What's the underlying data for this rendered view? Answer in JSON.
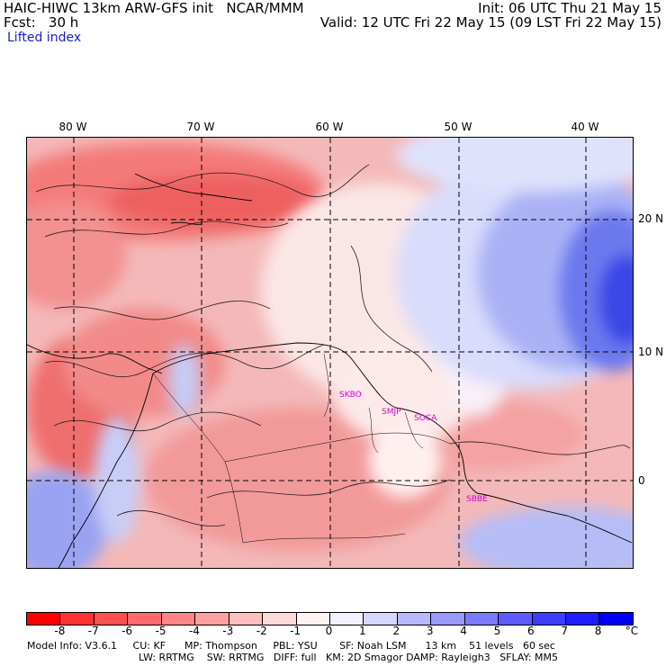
{
  "header": {
    "left_line1": "HAIC-HIWC 13km ARW-GFS init   NCAR/MMM",
    "left_line2": "Fcst:   30 h",
    "right_line1": "Init: 06 UTC Thu 21 May 15",
    "right_line2": "Valid: 12 UTC Fri 22 May 15 (09 LST Fri 22 May 15)",
    "field_name": "Lifted index"
  },
  "map": {
    "lon_labels": [
      "80 W",
      "70 W",
      "60 W",
      "50 W",
      "40 W"
    ],
    "lat_labels": [
      "20 N",
      "10 N",
      "0"
    ],
    "stations": [
      "SKBO",
      "SMJP",
      "SOCA",
      "SBBE"
    ],
    "colors": {
      "negative_strong": "#ff2020",
      "neutral": "#ffffff",
      "positive_strong": "#2020ff"
    }
  },
  "colorbar": {
    "labels": [
      "-8",
      "-7",
      "-6",
      "-5",
      "-4",
      "-3",
      "-2",
      "-1",
      "0",
      "1",
      "2",
      "3",
      "4",
      "5",
      "6",
      "7",
      "8"
    ],
    "unit": "°C",
    "colors": [
      "#ff0000",
      "#ff3333",
      "#ff5050",
      "#ff6b6b",
      "#ff8585",
      "#ffa0a0",
      "#ffbdbd",
      "#ffd9d9",
      "#fff2f2",
      "#f2f2ff",
      "#d6d6ff",
      "#b8b8ff",
      "#9999ff",
      "#7a7aff",
      "#5b5bff",
      "#3d3dff",
      "#1e1eff",
      "#0000ff"
    ]
  },
  "footer": {
    "line1": "Model Info: V3.6.1     CU: KF      MP: Thompson     PBL: YSU       SF: Noah LSM      13 km    51 levels   60 sec",
    "line2": "LW: RRTMG    SW: RRTMG   DIFF: full   KM: 2D Smagor DAMP: Rayleigh3   SFLAY: MM5"
  }
}
